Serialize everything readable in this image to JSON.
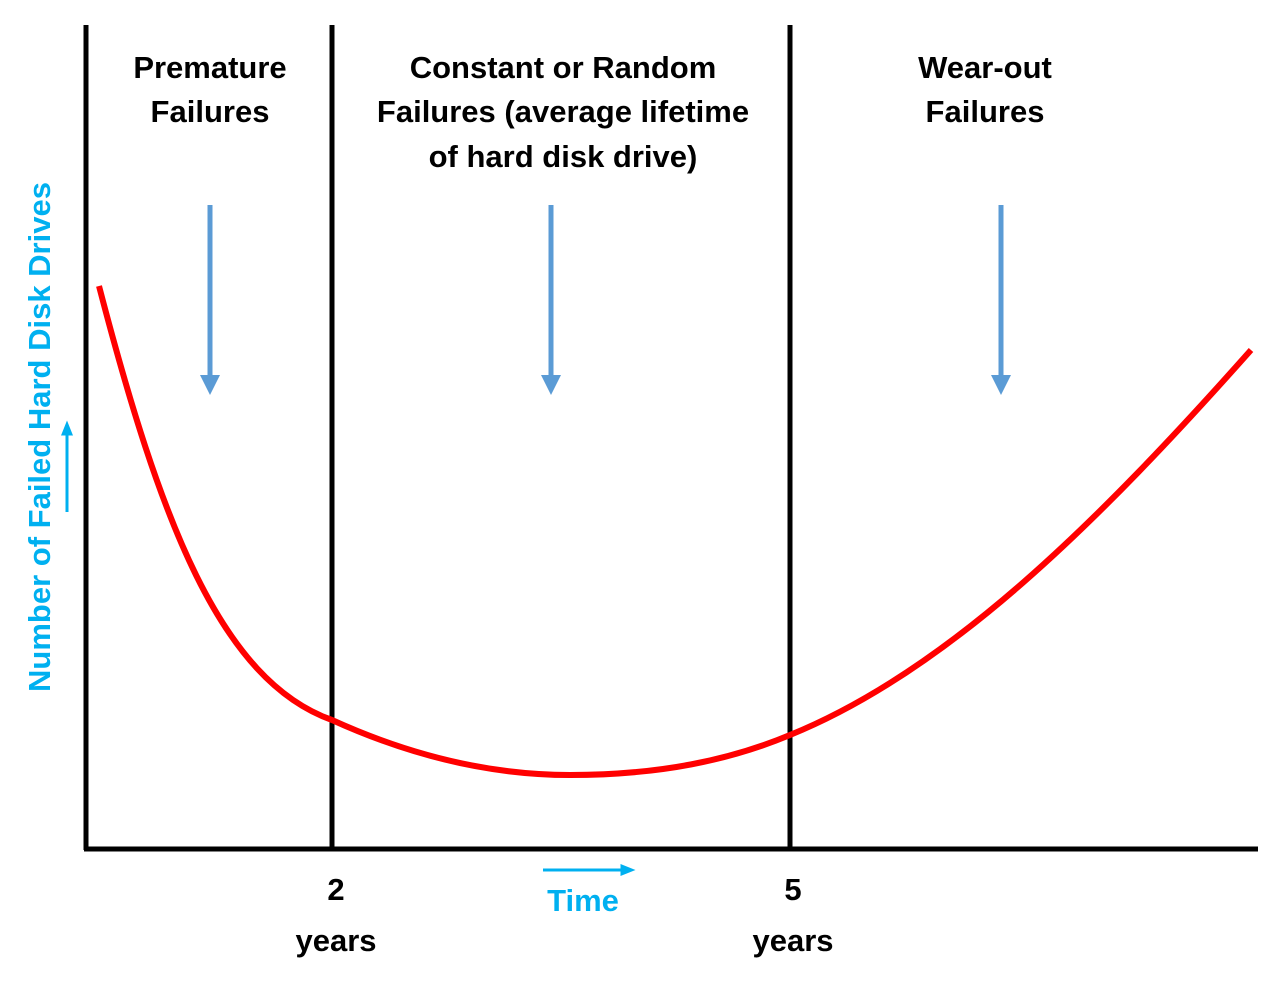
{
  "regions": [
    {
      "lines": [
        "Premature",
        "Failures"
      ]
    },
    {
      "lines": [
        "Constant or Random",
        "Failures (average lifetime",
        "of hard disk drive)"
      ]
    },
    {
      "lines": [
        "Wear-out",
        "Failures"
      ]
    }
  ],
  "y_axis": {
    "label": "Number of Failed Hard Disk Drives"
  },
  "x_axis": {
    "label": "Time",
    "ticks": [
      {
        "number": "2",
        "unit": "years"
      },
      {
        "number": "5",
        "unit": "years"
      }
    ]
  }
}
